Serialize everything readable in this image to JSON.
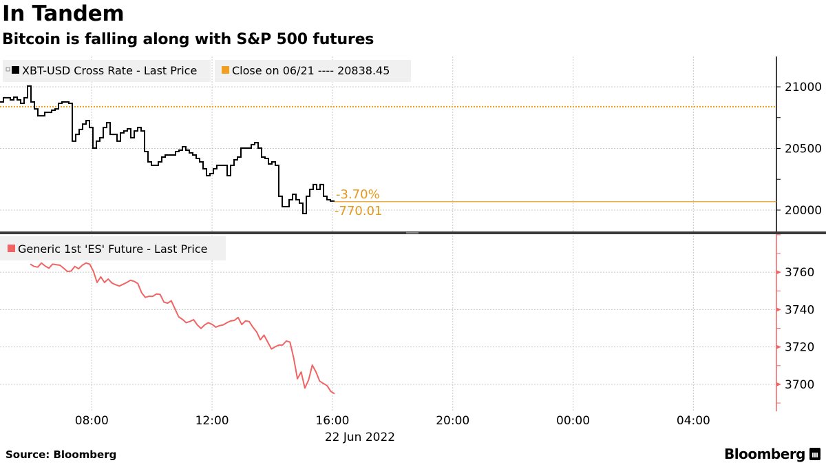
{
  "header": {
    "title": "In Tandem",
    "subtitle": "Bitcoin is falling along with S&P 500 futures"
  },
  "footer": {
    "source": "Source: Bloomberg",
    "logo": "Bloomberg"
  },
  "colors": {
    "bitcoin": "#000000",
    "close_line": "#f0a01e",
    "es": "#f06464",
    "annotation": "#e39a1c"
  },
  "chart_data": [
    {
      "type": "line",
      "panel": "top",
      "series": [
        {
          "name": "XBT-USD Cross Rate - Last Price",
          "start_hour": 4.95,
          "step_minutes": 6.865,
          "values": [
            20877,
            20911,
            20911,
            20894,
            20916,
            20894,
            20866,
            20911,
            21006,
            20877,
            20821,
            20765,
            20765,
            20793,
            20793,
            20810,
            20821,
            20866,
            20877,
            20877,
            20866,
            20559,
            20614,
            20654,
            20698,
            20726,
            20670,
            20503,
            20559,
            20587,
            20670,
            20709,
            20614,
            20614,
            20559,
            20626,
            20642,
            20659,
            20587,
            20642,
            20670,
            20642,
            20475,
            20391,
            20363,
            20363,
            20391,
            20430,
            20447,
            20447,
            20447,
            20475,
            20486,
            20514,
            20486,
            20464,
            20447,
            20419,
            20391,
            20335,
            20279,
            20296,
            20335,
            20363,
            20363,
            20363,
            20279,
            20363,
            20408,
            20430,
            20503,
            20503,
            20503,
            20531,
            20547,
            20503,
            20430,
            20419,
            20374,
            20391,
            20363,
            20112,
            20028,
            20028,
            20084,
            20128,
            20084,
            20056,
            19972,
            20112,
            20168,
            20207,
            20168,
            20207,
            20112,
            20084,
            20073,
            20068
          ]
        }
      ],
      "reference_line": {
        "label": "Close on 06/21 ---- 20838.45",
        "value": 20838.45
      },
      "annotations": {
        "pct_change": "-3.70%",
        "abs_change": "-770.01",
        "last_value": 20068.44
      },
      "y_ticks": [
        {
          "value": 20000,
          "label": "20000"
        },
        {
          "value": 20500,
          "label": "20500"
        },
        {
          "value": 21000,
          "label": "21000"
        }
      ],
      "ylim": [
        19821,
        21246
      ],
      "grid": true
    },
    {
      "type": "line",
      "panel": "bottom",
      "series": [
        {
          "name": "Generic 1st 'ES' Future - Last Price",
          "start_hour": 5.957,
          "step_minutes": 7.4,
          "values": [
            3764.3,
            3763.1,
            3762.7,
            3764.9,
            3763.3,
            3762.1,
            3764.3,
            3764,
            3763.7,
            3762.1,
            3760.4,
            3760.6,
            3763.1,
            3761.8,
            3763.7,
            3764.9,
            3764.3,
            3760.6,
            3754.5,
            3757.5,
            3754.5,
            3756.3,
            3754.2,
            3753.3,
            3752.6,
            3753.5,
            3754.5,
            3755.7,
            3755.1,
            3753.9,
            3749,
            3746.5,
            3747.1,
            3747.1,
            3748.3,
            3748.1,
            3744,
            3743.4,
            3744.7,
            3740.4,
            3736.1,
            3734.8,
            3733,
            3733.6,
            3734.6,
            3731.8,
            3729.9,
            3731.8,
            3733,
            3732.1,
            3730.6,
            3731.4,
            3731.8,
            3733,
            3733.9,
            3734.2,
            3735.8,
            3732,
            3733.9,
            3733.6,
            3730.6,
            3728.1,
            3723.8,
            3726.3,
            3722.6,
            3718.9,
            3720.1,
            3721,
            3721,
            3723.2,
            3722.6,
            3714,
            3703,
            3706.6,
            3698,
            3702.3,
            3710.3,
            3706.6,
            3701.7,
            3700.5,
            3699.3,
            3696.2,
            3695
          ]
        }
      ],
      "y_ticks": [
        {
          "value": 3700,
          "label": "3700"
        },
        {
          "value": 3720,
          "label": "3720"
        },
        {
          "value": 3740,
          "label": "3740"
        },
        {
          "value": 3760,
          "label": "3760"
        }
      ],
      "ylim": [
        3685.6,
        3780.3
      ],
      "grid": true
    }
  ],
  "x_axis": {
    "xlim_hours": [
      4.95,
      30.76
    ],
    "ticks": [
      {
        "hour": 8,
        "label": "08:00"
      },
      {
        "hour": 12,
        "label": "12:00"
      },
      {
        "hour": 16,
        "label": "16:00"
      },
      {
        "hour": 20,
        "label": "20:00"
      },
      {
        "hour": 24,
        "label": "00:00"
      },
      {
        "hour": 28,
        "label": "04:00"
      }
    ],
    "date_label": "22 Jun 2022"
  }
}
